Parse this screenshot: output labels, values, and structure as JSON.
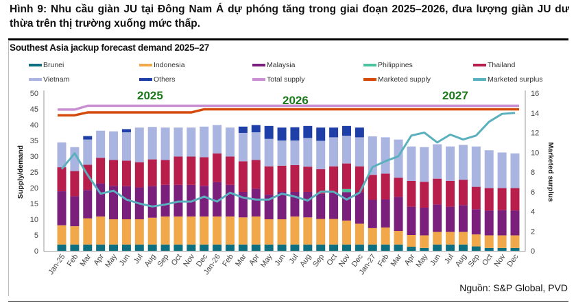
{
  "figure_title": "Hình 9: Nhu cầu giàn JU tại Đông Nam Á dự phóng tăng trong giai đoạn 2025–2026, đưa lượng giàn JU dư thừa trên thị trường xuống mức thấp.",
  "source": "Nguồn: S&P Global, PVD",
  "chart_data": {
    "type": "bar",
    "stacked": true,
    "title": "Southest Asia jackup forecast demand 2025–27",
    "ylabel": "Supply/demand",
    "y2label": "Marketed surplus",
    "ylim": [
      0,
      50
    ],
    "y2lim": [
      0,
      16
    ],
    "yticks": [
      "0",
      "5",
      "10",
      "15",
      "20",
      "25",
      "30",
      "35",
      "40",
      "45",
      "50"
    ],
    "y2ticks": [
      "0",
      "2",
      "4",
      "6",
      "8",
      "10",
      "12",
      "14",
      "16"
    ],
    "annotations": [
      "2025",
      "2026",
      "2027"
    ],
    "legend_position": "top",
    "categories": [
      "Jan-25",
      "Feb",
      "Mar",
      "Apr",
      "May",
      "Jun",
      "Jul",
      "Aug",
      "Sep",
      "Oct",
      "Nov",
      "Dec",
      "Jan-26",
      "Feb",
      "Mar",
      "Apr",
      "May",
      "Jun",
      "Jul",
      "Aug",
      "Sep",
      "Oct",
      "Nov",
      "Dec",
      "Jan-27",
      "Feb",
      "Mar",
      "Apr",
      "May",
      "Jun",
      "Jul",
      "Aug",
      "Sep",
      "Oct",
      "Nov",
      "Dec"
    ],
    "series": [
      {
        "name": "Brunei",
        "color": "#0e6f80",
        "kind": "bar",
        "values": [
          2,
          2,
          2,
          2,
          2,
          2,
          2,
          2,
          2,
          2,
          2,
          2,
          2,
          2,
          2,
          2,
          2,
          2,
          2,
          2,
          2,
          2,
          2,
          2,
          2,
          2,
          2,
          1.3,
          0.9,
          2,
          2,
          2,
          1.4,
          0.9,
          0.9,
          0.9
        ]
      },
      {
        "name": "Indonesia",
        "color": "#f0a84a",
        "kind": "bar",
        "values": [
          6.1,
          5.8,
          8.3,
          8.9,
          8.0,
          8.0,
          8.0,
          8.5,
          8.9,
          8.9,
          8.9,
          8.9,
          8.9,
          8.9,
          8.6,
          8.9,
          8.0,
          8.0,
          8.9,
          8.6,
          8.1,
          8.1,
          7.6,
          6.6,
          5.2,
          5.4,
          4.3,
          3.7,
          4.0,
          4.0,
          4.0,
          4.0,
          3.8,
          4.0,
          4.0,
          4.0
        ]
      },
      {
        "name": "Malaysia",
        "color": "#7a1f7c",
        "kind": "bar",
        "values": [
          10.8,
          9.5,
          9.0,
          10.5,
          10.6,
          10.5,
          10.1,
          10.0,
          10.0,
          10.0,
          10.0,
          9.7,
          10.9,
          10.0,
          8.1,
          8.8,
          7.8,
          8.7,
          7.8,
          8.1,
          8.0,
          8.4,
          9.0,
          10.0,
          9.0,
          8.9,
          10.8,
          9.0,
          8.8,
          8.7,
          8.0,
          8.5,
          8.0,
          7.9,
          8.0,
          7.9
        ]
      },
      {
        "name": "Philippines",
        "color": "#4cc3a0",
        "kind": "bar",
        "values": [
          0,
          0,
          0,
          0,
          0,
          0,
          0,
          0,
          0,
          0,
          0,
          0,
          0,
          0,
          0,
          0,
          0,
          0,
          0,
          0,
          0,
          0,
          1.0,
          0,
          0,
          0,
          0,
          0,
          0,
          0,
          0,
          0,
          0,
          0,
          0,
          0
        ]
      },
      {
        "name": "Thailand",
        "color": "#b81e4c",
        "kind": "bar",
        "values": [
          7.6,
          8.0,
          8.0,
          8.1,
          8.2,
          8.1,
          8.0,
          8.5,
          7.9,
          9.0,
          9.0,
          9.1,
          9.1,
          9.0,
          9.7,
          9.1,
          9.0,
          8.3,
          8.5,
          8.0,
          7.8,
          8.3,
          8.1,
          8.2,
          7.9,
          8.2,
          6.1,
          8.2,
          8.2,
          8.2,
          8.2,
          8.0,
          7.1,
          7.1,
          7.0,
          7.1
        ]
      },
      {
        "name": "Vietnam",
        "color": "#aab4e0",
        "kind": "bar",
        "values": [
          7.9,
          7.6,
          8.0,
          8.6,
          9.1,
          9.0,
          11.0,
          10.3,
          10.3,
          9.2,
          9.2,
          9.7,
          9.0,
          9.2,
          9.0,
          8.8,
          8.7,
          8.0,
          7.8,
          9.1,
          9.0,
          9.2,
          8.8,
          9.2,
          12.2,
          11.5,
          12.1,
          10.9,
          11.0,
          10.9,
          10.9,
          11.1,
          12.8,
          12.0,
          11.3,
          11.0
        ]
      },
      {
        "name": "Others",
        "color": "#1f3fa8",
        "kind": "bar",
        "values": [
          0,
          0,
          1.1,
          0,
          0,
          1.0,
          0,
          0,
          0,
          0,
          0,
          0,
          0,
          0,
          2.0,
          2.3,
          4.1,
          4.1,
          4.2,
          3.8,
          4.2,
          3.1,
          3.1,
          3.1,
          0,
          0,
          0,
          0,
          0,
          0,
          0,
          0,
          0,
          0,
          0,
          0
        ]
      },
      {
        "name": "Total supply",
        "color": "#c98fd2",
        "kind": "line",
        "axis": "left",
        "values": [
          44.8,
          44.8,
          46,
          46,
          46,
          46,
          46,
          46,
          46,
          46,
          46,
          46,
          46,
          46,
          46,
          46,
          46,
          46,
          46,
          46,
          46,
          46,
          46,
          46,
          46,
          46,
          46,
          46,
          46,
          46,
          46,
          46,
          46,
          46,
          46,
          46
        ]
      },
      {
        "name": "Marketed supply",
        "color": "#d44a0a",
        "kind": "line",
        "axis": "left",
        "values": [
          43.0,
          43.0,
          43.9,
          43.9,
          43.9,
          43.9,
          43.9,
          43.9,
          43.9,
          43.9,
          43.9,
          44.9,
          44.9,
          44.9,
          44.9,
          44.9,
          44.9,
          44.9,
          44.9,
          44.9,
          44.9,
          44.9,
          44.9,
          44.9,
          44.9,
          44.9,
          44.9,
          44.9,
          44.9,
          44.9,
          44.9,
          44.9,
          44.9,
          44.9,
          44.9,
          44.9
        ]
      },
      {
        "name": "Marketed surplus",
        "color": "#5ab0bd",
        "kind": "line",
        "axis": "right",
        "values": [
          8.3,
          9.9,
          7.7,
          5.8,
          6.1,
          5.2,
          4.8,
          4.5,
          4.7,
          5.0,
          5.0,
          5.5,
          5.0,
          5.9,
          5.4,
          5.2,
          5.2,
          5.8,
          5.5,
          5.1,
          6.0,
          6.0,
          5.2,
          5.9,
          8.5,
          9.1,
          9.6,
          11.7,
          12.0,
          11.0,
          11.8,
          11.3,
          11.7,
          13.1,
          13.9,
          14.0
        ]
      }
    ]
  }
}
